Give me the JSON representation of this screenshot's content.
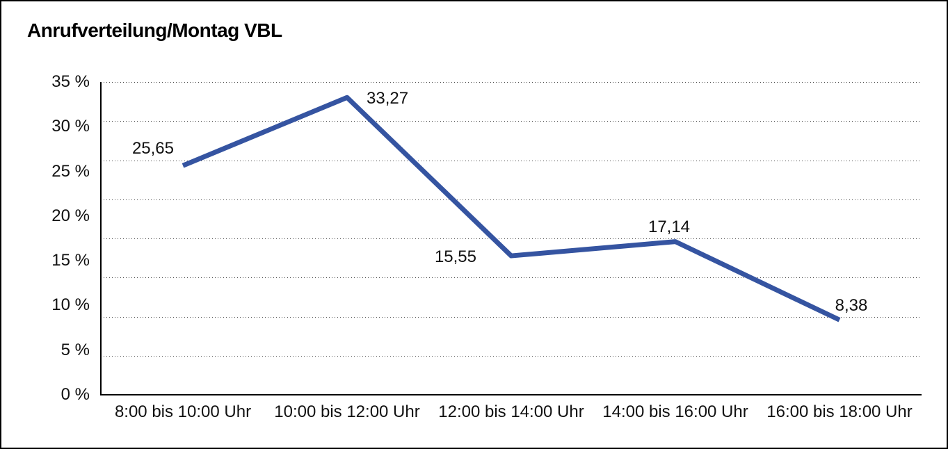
{
  "title": "Anrufverteilung/Montag VBL",
  "chart_data": {
    "type": "line",
    "title": "Anrufverteilung/Montag VBL",
    "categories": [
      "8:00 bis 10:00 Uhr",
      "10:00 bis 12:00 Uhr",
      "12:00 bis 14:00 Uhr",
      "14:00 bis 16:00 Uhr",
      "16:00 bis 18:00 Uhr"
    ],
    "values": [
      25.65,
      33.27,
      15.55,
      17.14,
      8.38
    ],
    "value_labels": [
      "25,65",
      "33,27",
      "15,55",
      "17,14",
      "8,38"
    ],
    "y_tick_values": [
      35,
      30,
      25,
      20,
      15,
      10,
      5,
      0
    ],
    "y_tick_labels": [
      "35 %",
      "30 %",
      "25 %",
      "20 %",
      "15 %",
      "10 %",
      "5 %",
      "0 %"
    ],
    "ylim": [
      0,
      35
    ],
    "xlabel": "",
    "ylabel": "",
    "legend": "none",
    "grid": "horizontal dotted, 9 evenly spaced lines",
    "line_color": "#3554A1",
    "grid_dot_color": "#474747",
    "axis_color": "#000000",
    "background_color": "#ffffff"
  }
}
